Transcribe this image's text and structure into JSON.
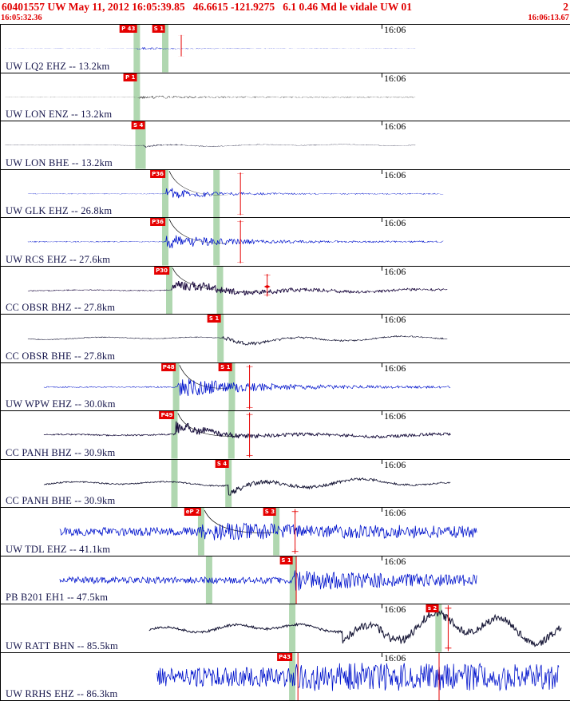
{
  "header": {
    "line1_left": "60401557 UW May 11, 2012 16:05:39.85   46.6615 -121.9275   6.1 0.46 Md le vidale UW 01",
    "line1_right": "2",
    "start_time": "16:05:32.36",
    "end_time": "16:06:13.67",
    "accent_color": "#e00000"
  },
  "timeline": {
    "tick_label": "16:06",
    "tick_frac": 0.669
  },
  "colors": {
    "blue_trace": "#0013cc",
    "gray_trace": "#454545",
    "dark_trace": "#191938",
    "pick_band_green": "#a2d0a2",
    "pick_flag_red": "#e60000"
  },
  "traces": [
    {
      "station": "UW LQ2 EHZ -- 13.2km",
      "color": "#0013cc",
      "bands": [
        {
          "x": 0.239,
          "w": 8
        },
        {
          "x": 0.289,
          "w": 8
        }
      ],
      "picks": [
        {
          "label": "P 43",
          "x": 0.239
        },
        {
          "label": "S 1",
          "x": 0.289
        }
      ],
      "markers": [
        {
          "type": "errorbar",
          "x": 0.317,
          "y1": 0.22,
          "y2": 0.66
        }
      ],
      "wave": {
        "style": "spiky",
        "start": 0.007,
        "end": 0.728,
        "onset": 0.2395,
        "pre": 1.2,
        "peak": 24,
        "decay": 0.07,
        "post": 2.2,
        "seed": 11
      }
    },
    {
      "station": "UW LON ENZ -- 13.2km",
      "color": "#454545",
      "bands": [
        {
          "x": 0.239,
          "w": 8
        }
      ],
      "picks": [
        {
          "label": "P 1",
          "x": 0.239
        }
      ],
      "markers": [],
      "wave": {
        "style": "spiky",
        "start": 0.007,
        "end": 0.728,
        "onset": 0.2395,
        "pre": 1.8,
        "peak": 13,
        "decay": 0.11,
        "post": 4.6,
        "seed": 22
      }
    },
    {
      "station": "UW LON BHE -- 13.2km",
      "color": "#191938",
      "bands": [
        {
          "x": 0.2455,
          "w": 13
        }
      ],
      "picks": [
        {
          "label": "S 4",
          "x": 0.253
        }
      ],
      "markers": [],
      "wave": {
        "style": "smooth",
        "start": 0.007,
        "end": 0.728,
        "onset": 0.252,
        "pre": 2.6,
        "peak": 13,
        "decay": 0.085,
        "post": 3.6,
        "f1": 0.058,
        "f2": 0.019,
        "seed": 33
      }
    },
    {
      "station": "UW GLK EHZ -- 26.8km",
      "color": "#0013cc",
      "bands": [
        {
          "x": 0.289,
          "w": 8
        },
        {
          "x": 0.379,
          "w": 8
        }
      ],
      "picks": [
        {
          "label": "P36",
          "x": 0.289
        }
      ],
      "arc": {
        "x1": 0.296,
        "x2": 0.4
      },
      "markers": [
        {
          "type": "errorbar",
          "x": 0.421,
          "y1": 0.07,
          "y2": 0.93
        }
      ],
      "wave": {
        "style": "spiky",
        "start": 0.048,
        "end": 0.778,
        "onset": 0.2905,
        "pre": 1.3,
        "peak": 27,
        "decay": 0.075,
        "post": 2.4,
        "seed": 44
      }
    },
    {
      "station": "UW RCS EHZ -- 27.6km",
      "color": "#0013cc",
      "bands": [
        {
          "x": 0.289,
          "w": 8
        },
        {
          "x": 0.379,
          "w": 8
        }
      ],
      "picks": [
        {
          "label": "P36",
          "x": 0.289
        }
      ],
      "arc": {
        "x1": 0.296,
        "x2": 0.4
      },
      "markers": [
        {
          "type": "errorbar",
          "x": 0.421,
          "y1": 0.07,
          "y2": 0.93
        }
      ],
      "wave": {
        "style": "spiky",
        "start": 0.048,
        "end": 0.778,
        "onset": 0.2905,
        "pre": 1.7,
        "peak": 25,
        "decay": 0.1,
        "post": 2.7,
        "seed": 55
      }
    },
    {
      "station": "CC OBSR BHZ -- 27.8km",
      "color": "#231245",
      "bands": [
        {
          "x": 0.296,
          "w": 8
        },
        {
          "x": 0.385,
          "w": 8
        }
      ],
      "picks": [
        {
          "label": "P30",
          "x": 0.296
        }
      ],
      "arc": {
        "x1": 0.302,
        "x2": 0.455
      },
      "markers": [
        {
          "type": "errorbar",
          "x": 0.468,
          "y1": 0.18,
          "y2": 0.6
        },
        {
          "type": "diamond",
          "x": 0.468,
          "y": 0.42
        }
      ],
      "wave": {
        "style": "mixed",
        "start": 0.048,
        "end": 0.785,
        "onset": 0.3,
        "pre": 2.2,
        "peak": 24,
        "decay": 0.13,
        "post": 5.5,
        "f1": 0.045,
        "f2": 0.014,
        "seed": 66
      }
    },
    {
      "station": "CC OBSR BHE -- 27.8km",
      "color": "#191938",
      "bands": [
        {
          "x": 0.386,
          "w": 8
        }
      ],
      "picks": [
        {
          "label": "S 1",
          "x": 0.386
        }
      ],
      "markers": [],
      "wave": {
        "style": "smooth",
        "start": 0.048,
        "end": 0.785,
        "onset": 0.39,
        "pre": 3.0,
        "peak": 15,
        "decay": 0.1,
        "post": 4.6,
        "f1": 0.05,
        "f2": 0.017,
        "seed": 77
      }
    },
    {
      "station": "UW WPW EHZ -- 30.0km",
      "color": "#0013cc",
      "bands": [
        {
          "x": 0.308,
          "w": 8
        },
        {
          "x": 0.406,
          "w": 8
        }
      ],
      "picks": [
        {
          "label": "P48",
          "x": 0.308
        },
        {
          "label": "S 1",
          "x": 0.406
        }
      ],
      "arc": {
        "x1": 0.314,
        "x2": 0.4
      },
      "markers": [
        {
          "type": "errorbar",
          "x": 0.437,
          "y1": 0.07,
          "y2": 0.93
        }
      ],
      "wave": {
        "style": "spiky",
        "start": 0.075,
        "end": 0.79,
        "onset": 0.31,
        "pre": 1.3,
        "peak": 22,
        "decay": 0.12,
        "post": 2.1,
        "seed": 88
      }
    },
    {
      "station": "CC PANH BHZ -- 30.9km",
      "color": "#1c1340",
      "bands": [
        {
          "x": 0.305,
          "w": 8
        },
        {
          "x": 0.405,
          "w": 8
        }
      ],
      "picks": [
        {
          "label": "P49",
          "x": 0.305
        }
      ],
      "arc": {
        "x1": 0.311,
        "x2": 0.42
      },
      "markers": [
        {
          "type": "errorbar",
          "x": 0.437,
          "y1": 0.07,
          "y2": 0.93
        }
      ],
      "wave": {
        "style": "mixed",
        "start": 0.075,
        "end": 0.79,
        "onset": 0.308,
        "pre": 2.2,
        "peak": 20,
        "decay": 0.06,
        "post": 4.6,
        "f1": 0.04,
        "f2": 0.013,
        "seed": 99
      }
    },
    {
      "station": "CC PANH BHE -- 30.9km",
      "color": "#191938",
      "bands": [
        {
          "x": 0.305,
          "w": 8
        },
        {
          "x": 0.4,
          "w": 8
        }
      ],
      "picks": [
        {
          "label": "S 4",
          "x": 0.4
        }
      ],
      "markers": [],
      "wave": {
        "style": "smooth",
        "start": 0.075,
        "end": 0.79,
        "onset": 0.4,
        "pre": 3.6,
        "peak": 13,
        "decay": 0.12,
        "post": 5.0,
        "f1": 0.052,
        "f2": 0.02,
        "seed": 110
      }
    },
    {
      "station": "UW TDL EHZ -- 41.1km",
      "color": "#0013cc",
      "bands": [
        {
          "x": 0.352,
          "w": 8
        },
        {
          "x": 0.484,
          "w": 8
        }
      ],
      "picks": [
        {
          "label": "eP 2",
          "x": 0.352
        },
        {
          "label": "S 3",
          "x": 0.484
        }
      ],
      "arc": {
        "x1": 0.358,
        "x2": 0.478
      },
      "markers": [
        {
          "type": "errorbar",
          "x": 0.517,
          "y1": 0.08,
          "y2": 0.92
        }
      ],
      "wave": {
        "style": "spiky",
        "start": 0.103,
        "end": 0.836,
        "onset": 0.352,
        "pre": 7,
        "peak": 8,
        "decay": 0.5,
        "post": 6.5,
        "seed": 121
      }
    },
    {
      "station": "PB B201 EH1 -- 47.5km",
      "color": "#0013cc",
      "bands": [
        {
          "x": 0.366,
          "w": 8
        },
        {
          "x": 0.513,
          "w": 8
        }
      ],
      "picks": [
        {
          "label": "S 1",
          "x": 0.513
        }
      ],
      "markers": [
        {
          "type": "vline",
          "x": 0.519
        }
      ],
      "wave": {
        "style": "spiky",
        "start": 0.103,
        "end": 0.836,
        "onset": 0.513,
        "pre": 5,
        "peak": 11,
        "decay": 0.25,
        "post": 5,
        "seed": 132
      }
    },
    {
      "station": "UW RATT BHN -- 85.5km",
      "color": "#191938",
      "bands": [
        {
          "x": 0.512,
          "w": 8
        },
        {
          "x": 0.769,
          "w": 8
        }
      ],
      "picks": [
        {
          "label": "s 2",
          "x": 0.769
        }
      ],
      "markers": [
        {
          "type": "errorbar",
          "x": 0.786,
          "y1": 0.08,
          "y2": 0.92
        }
      ],
      "wave": {
        "style": "smooth",
        "start": 0.26,
        "end": 0.985,
        "onset": 0.6,
        "pre": 5,
        "peak": 14,
        "decay": 5,
        "post": 5,
        "f1": 0.075,
        "f2": 0.027,
        "seed": 143
      }
    },
    {
      "station": "UW RRHS EHZ -- 86.3km",
      "color": "#0013cc",
      "bands": [
        {
          "x": 0.512,
          "w": 8
        }
      ],
      "picks": [
        {
          "label": "P43",
          "x": 0.512
        }
      ],
      "markers": [
        {
          "type": "vline",
          "x": 0.522
        },
        {
          "type": "vline",
          "x": 0.77
        }
      ],
      "wave": {
        "style": "spiky",
        "start": 0.275,
        "end": 0.98,
        "onset": 0.512,
        "pre": 12,
        "peak": 6,
        "decay": 2,
        "post": 12,
        "seed": 154
      }
    }
  ]
}
